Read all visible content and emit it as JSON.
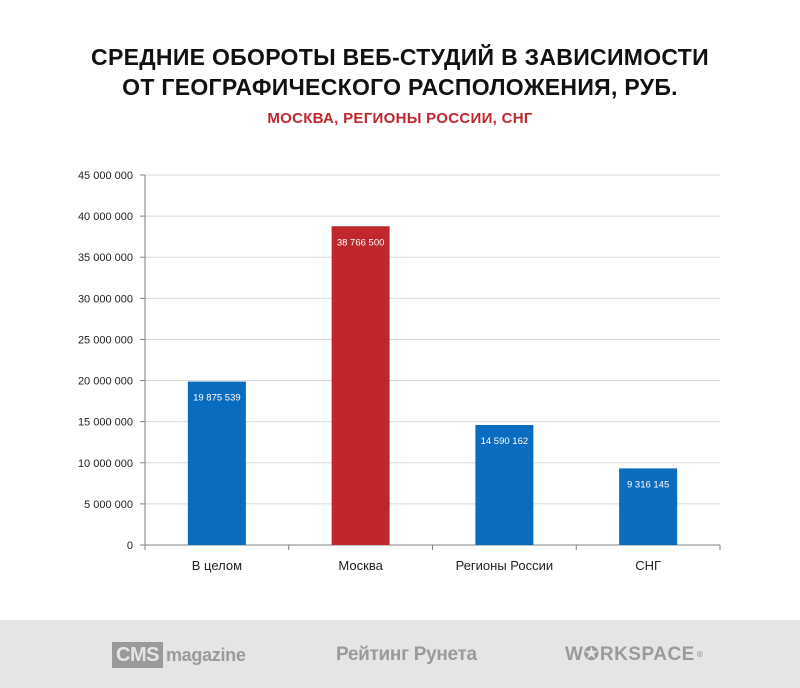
{
  "chart_data": {
    "type": "bar",
    "title_line1": "СРЕДНИЕ ОБОРОТЫ ВЕБ-СТУДИЙ В ЗАВИСИМОСТИ",
    "title_line2": "ОТ ГЕОГРАФИЧЕСКОГО РАСПОЛОЖЕНИЯ, РУБ.",
    "subtitle": "МОСКВА, РЕГИОНЫ РОССИИ, СНГ",
    "categories": [
      "В целом",
      "Москва",
      "Регионы России",
      "СНГ"
    ],
    "values": [
      19875539,
      38766500,
      14590162,
      9316145
    ],
    "value_labels": [
      "19 875 539",
      "38 766 500",
      "14 590 162",
      "9 316 145"
    ],
    "bar_colors": [
      "#0a6cbe",
      "#c0272d",
      "#0a6cbe",
      "#0a6cbe"
    ],
    "ylim": [
      0,
      45000000
    ],
    "yticks": [
      0,
      5000000,
      10000000,
      15000000,
      20000000,
      25000000,
      30000000,
      35000000,
      40000000,
      45000000
    ],
    "ytick_labels": [
      "0",
      "5 000 000",
      "10 000 000",
      "15 000 000",
      "20 000 000",
      "25 000 000",
      "30 000 000",
      "35 000 000",
      "40 000 000",
      "45 000 000"
    ],
    "grid": true
  },
  "footer": {
    "logo1_box": "CMS",
    "logo1_text": "magazine",
    "logo2": "Рейтинг Рунета",
    "logo3": "W✪RKSPACE",
    "logo3_mark": "®"
  }
}
